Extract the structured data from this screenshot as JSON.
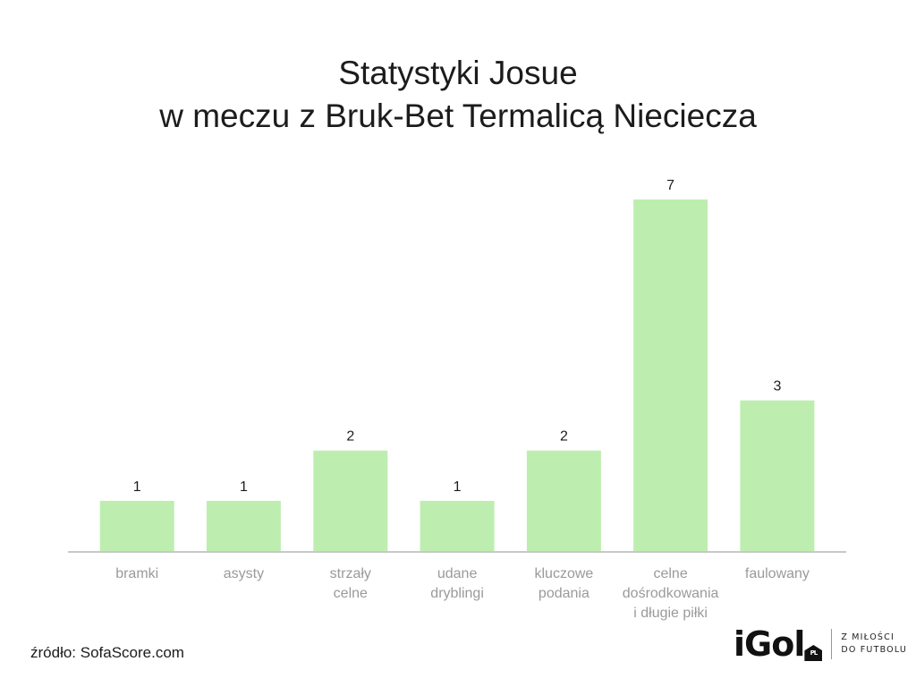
{
  "title": {
    "line1": "Statystyki Josue",
    "line2": "w meczu z Bruk-Bet Termalicą Nieciecza"
  },
  "chart_data": {
    "type": "bar",
    "title": "Statystyki Josue w meczu z Bruk-Bet Termalicą Nieciecza",
    "categories": [
      [
        "bramki"
      ],
      [
        "asysty"
      ],
      [
        "strzały",
        "celne"
      ],
      [
        "udane",
        "dryblingi"
      ],
      [
        "kluczowe",
        "podania"
      ],
      [
        "celne",
        "dośrodkowania",
        "i długie piłki"
      ],
      [
        "faulowany"
      ]
    ],
    "values": [
      1,
      1,
      2,
      1,
      2,
      7,
      3
    ],
    "ylim": [
      0,
      7
    ],
    "grid": false,
    "bar_color": "#bdeeb0",
    "axis_color": "#c8c8c8",
    "label_color": "#9a9a9a",
    "value_color": "#1c1c1c"
  },
  "source": "źródło: SofaScore.com",
  "logo": {
    "mark": "iGol",
    "badge": "PL",
    "tagline_line1": "Z MIŁOŚCI",
    "tagline_line2": "DO FUTBOLU"
  }
}
